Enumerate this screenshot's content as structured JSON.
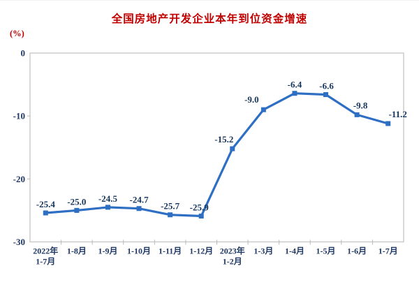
{
  "chart_data": {
    "type": "line",
    "title": "全国房地产开发企业本年到位资金增速",
    "unit_label": "(%)",
    "categories": [
      "2022年\n1-7月",
      "1-8月",
      "1-9月",
      "1-10月",
      "1-11月",
      "1-12月",
      "2023年\n1-2月",
      "1-3月",
      "1-4月",
      "1-5月",
      "1-6月",
      "1-7月"
    ],
    "values": [
      -25.4,
      -25.0,
      -24.5,
      -24.7,
      -25.7,
      -25.9,
      -15.2,
      -9.0,
      -6.4,
      -6.6,
      -9.8,
      -11.2
    ],
    "data_labels": [
      "-25.4",
      "-25.0",
      "-24.5",
      "-24.7",
      "-25.7",
      "-25.9",
      "-15.2",
      "-9.0",
      "-6.4",
      "-6.6",
      "-9.8",
      "-11.2"
    ],
    "ylim": [
      -30,
      0
    ],
    "yticks": [
      0,
      -10,
      -20,
      -30
    ],
    "grid": false,
    "legend": "none",
    "colors": {
      "title": "#C00000",
      "axis_text": "#1F3864",
      "data_label": "#17365D",
      "line": "#2E6FC4",
      "marker": "#2E6FC4",
      "frame": "#C9C9C9",
      "tick": "#B8B8B8"
    }
  }
}
